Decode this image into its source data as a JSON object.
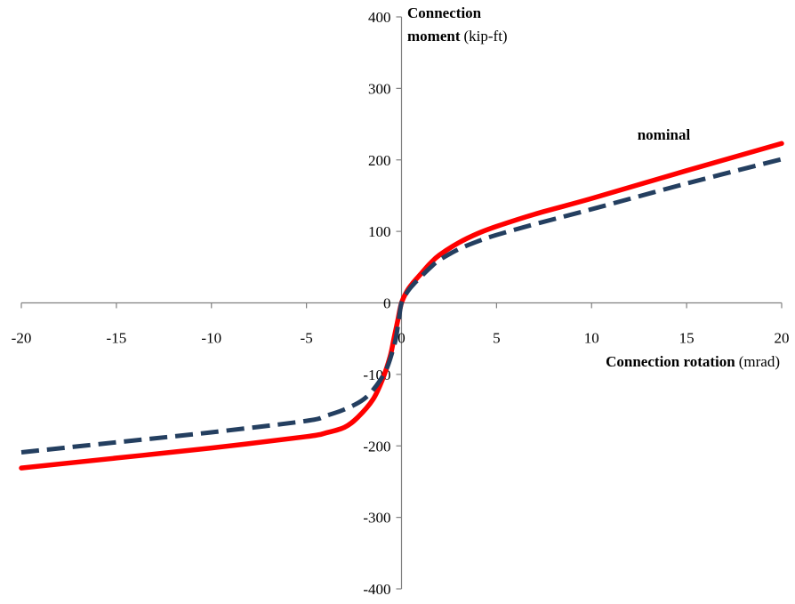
{
  "chart_data": {
    "type": "line",
    "x_axis": {
      "title_bold": "Connection rotation",
      "title_unit": "(mrad)",
      "range": [
        -20,
        20
      ],
      "ticks": [
        -20,
        -15,
        -10,
        -5,
        0,
        5,
        10,
        15,
        20
      ],
      "tick_labels": [
        "-20",
        "-15",
        "-10",
        "-5",
        "0",
        "5",
        "10",
        "15",
        "20"
      ]
    },
    "y_axis": {
      "title_line1": "Connection",
      "title_line2_bold": "moment",
      "title_unit": "(kip-ft)",
      "range": [
        -400,
        400
      ],
      "ticks": [
        -400,
        -300,
        -200,
        -100,
        0,
        100,
        200,
        300,
        400
      ],
      "tick_labels": [
        "-400",
        "-300",
        "-200",
        "-100",
        "0",
        "100",
        "200",
        "300",
        "400"
      ]
    },
    "grid": false,
    "series": [
      {
        "name": "nominal",
        "color": "#ff0000",
        "style": "solid",
        "points": [
          [
            -20,
            -231
          ],
          [
            -15,
            -217
          ],
          [
            -10,
            -203
          ],
          [
            -5,
            -187
          ],
          [
            -4,
            -182
          ],
          [
            -3,
            -174
          ],
          [
            -2.3,
            -160
          ],
          [
            -1.5,
            -135
          ],
          [
            -1,
            -107
          ],
          [
            -0.6,
            -75
          ],
          [
            -0.4,
            -50
          ],
          [
            -0.2,
            -25
          ],
          [
            0,
            0
          ],
          [
            0.3,
            17
          ],
          [
            0.6,
            28
          ],
          [
            1,
            40
          ],
          [
            1.5,
            55
          ],
          [
            2,
            67
          ],
          [
            3,
            84
          ],
          [
            4,
            97
          ],
          [
            5,
            107
          ],
          [
            7,
            124
          ],
          [
            10,
            146
          ],
          [
            15,
            185
          ],
          [
            20,
            223
          ]
        ]
      },
      {
        "color": "#243f60",
        "style": "dashed",
        "points": [
          [
            -20,
            -209
          ],
          [
            -15,
            -195
          ],
          [
            -10,
            -181
          ],
          [
            -5,
            -165
          ],
          [
            -4,
            -158
          ],
          [
            -3,
            -149
          ],
          [
            -2,
            -135
          ],
          [
            -1.3,
            -115
          ],
          [
            -0.8,
            -93
          ],
          [
            -0.5,
            -70
          ],
          [
            -0.3,
            -50
          ],
          [
            -0.15,
            -25
          ],
          [
            0,
            0
          ],
          [
            0.3,
            15
          ],
          [
            0.6,
            25
          ],
          [
            1,
            36
          ],
          [
            1.5,
            49
          ],
          [
            2,
            60
          ],
          [
            3,
            75
          ],
          [
            4,
            86
          ],
          [
            5,
            95
          ],
          [
            7,
            110
          ],
          [
            10,
            131
          ],
          [
            15,
            167
          ],
          [
            20,
            201
          ]
        ]
      }
    ],
    "annotations": [
      {
        "text": "nominal",
        "x": 13.8,
        "y": 228
      }
    ]
  }
}
